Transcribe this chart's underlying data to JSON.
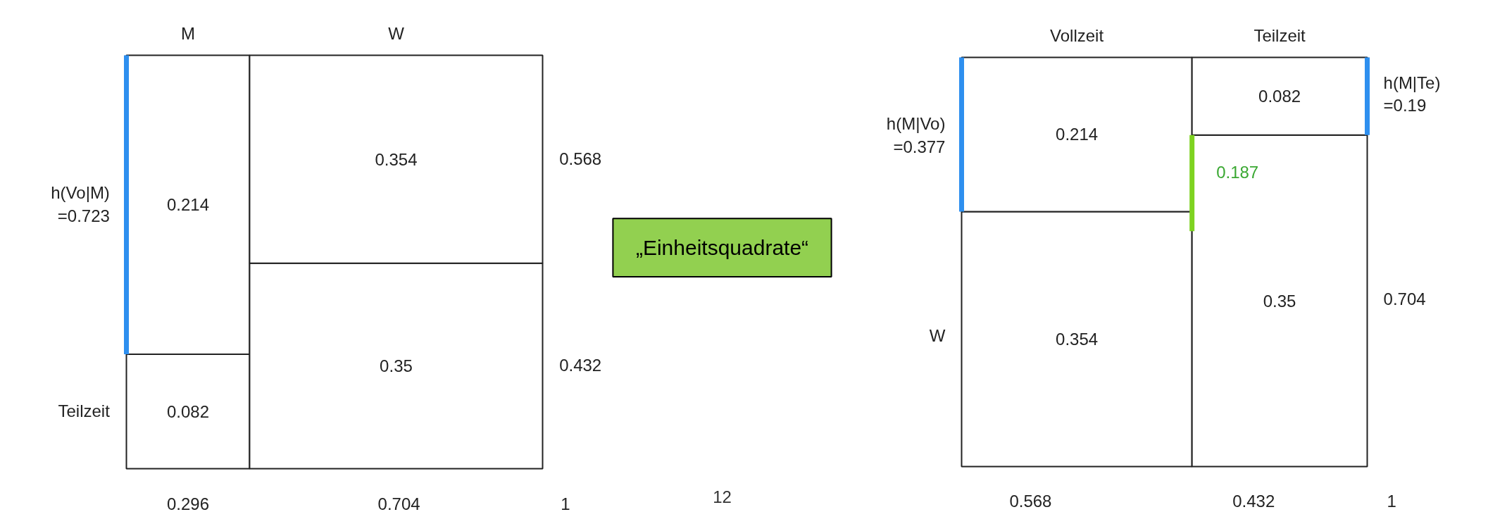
{
  "chart_data": [
    {
      "type": "other",
      "categories": [
        "M",
        "W"
      ],
      "data_labels": true,
      "series": [
        {
          "color": "#ffffff",
          "values": [
            0.082,
            0.35
          ]
        },
        {
          "color": "#ffffff",
          "values": [
            0.214,
            0.354
          ]
        }
      ],
      "annotations": [
        "h(Vo|M)\n=0.723",
        "Teilzeit",
        "0.568",
        "0.432",
        "0.296",
        "0.704",
        "1"
      ]
    },
    {
      "type": "other",
      "title": "„Einheitsquadrate“",
      "color": "#92d050",
      "annotations": [
        "12"
      ]
    },
    {
      "type": "other",
      "categories": [
        "Vollzeit",
        "Teilzeit"
      ],
      "data_labels": true,
      "series": [
        {
          "color": "#ffffff",
          "values": [
            0.354,
            0.35
          ]
        },
        {
          "color": "#ffffff",
          "values": [
            0.214,
            0.082
          ]
        }
      ],
      "annotations": [
        "h(M|Vo)\n=0.377",
        "W",
        "h(M|Te)\n=0.19",
        "0.704",
        "0.568",
        "0.432",
        "1",
        "0.187"
      ]
    }
  ]
}
